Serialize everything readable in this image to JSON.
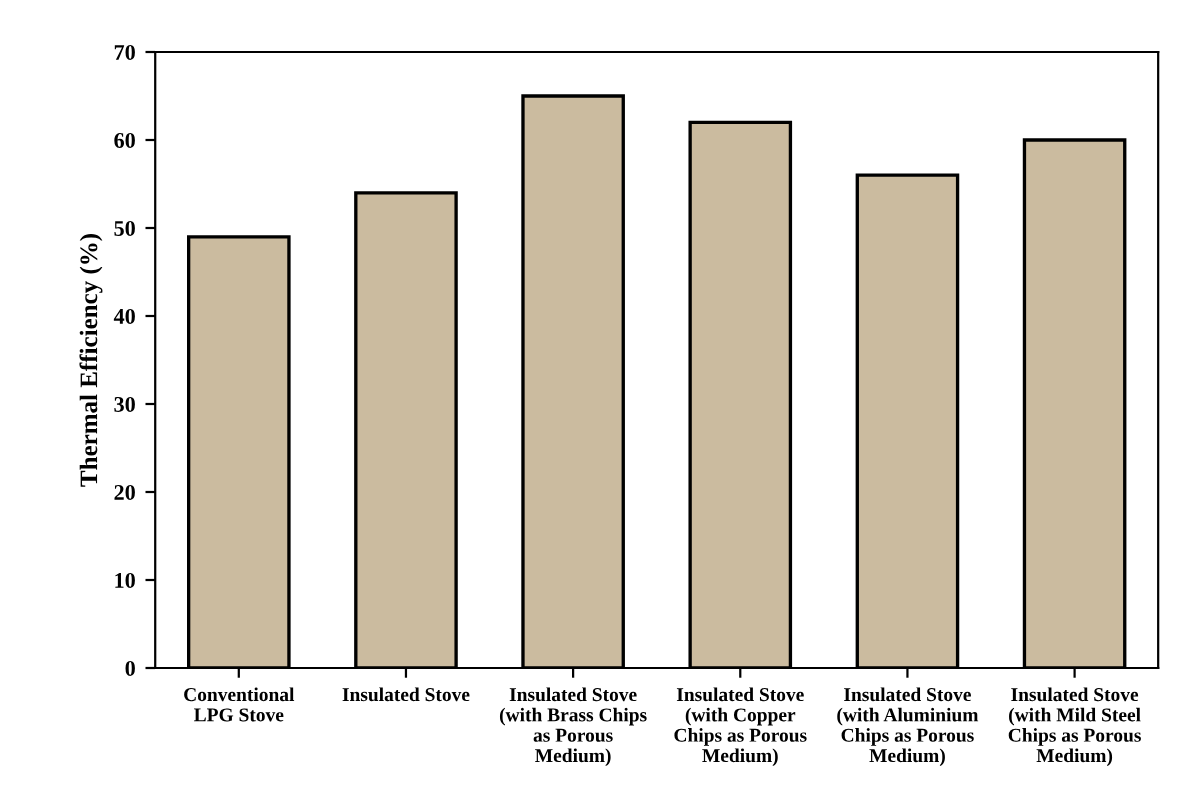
{
  "chart_data": {
    "type": "bar",
    "ylabel": "Thermal Efficiency (%)",
    "categories": [
      "Conventional\nLPG Stove",
      "Insulated Stove",
      "Insulated Stove\n(with Brass Chips\nas Porous\nMedium)",
      "Insulated Stove\n(with Copper\nChips as Porous\nMedium)",
      "Insulated Stove\n(with Aluminium\nChips as Porous\nMedium)",
      "Insulated Stove\n(with Mild Steel\nChips as Porous\nMedium)"
    ],
    "values": [
      49,
      54,
      65,
      62,
      56,
      60
    ],
    "color": "#cbbb9f",
    "ylim": [
      0,
      70
    ],
    "yticks": [
      0,
      10,
      20,
      30,
      40,
      50,
      60,
      70
    ],
    "grid": false,
    "legend": false
  }
}
